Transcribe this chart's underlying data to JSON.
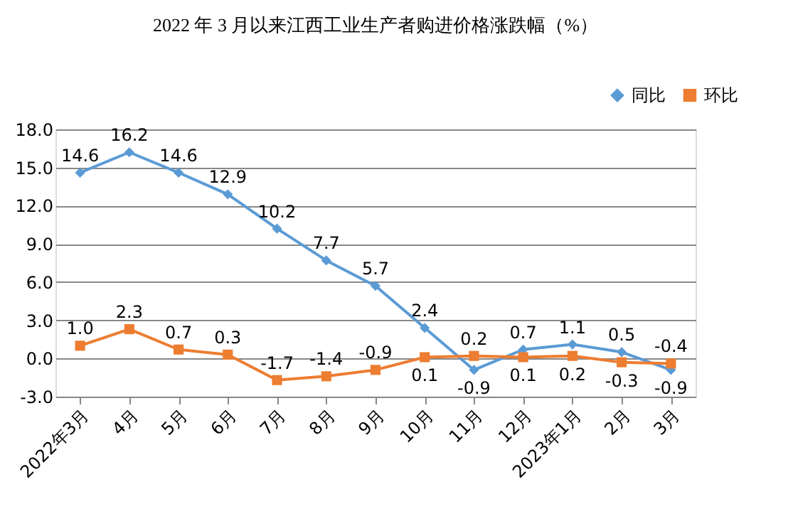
{
  "chart_data": {
    "type": "line",
    "title": "2022 年 3 月以来江西工业生产者购进价格涨跌幅（%）",
    "categories": [
      "2022年3月",
      "4月",
      "5月",
      "6月",
      "7月",
      "8月",
      "9月",
      "10月",
      "11月",
      "12月",
      "2023年1月",
      "2月",
      "3月"
    ],
    "series": [
      {
        "name": "同比",
        "color": "#5b9bd5",
        "marker": "diamond",
        "values": [
          14.6,
          16.2,
          14.6,
          12.9,
          10.2,
          7.7,
          5.7,
          2.4,
          -0.9,
          0.7,
          1.1,
          0.5,
          -0.9
        ],
        "value_labels": [
          "14.6",
          "16.2",
          "14.6",
          "12.9",
          "10.2",
          "7.7",
          "5.7",
          "2.4",
          "-0.9",
          "0.7",
          "1.1",
          "0.5",
          "-0.9"
        ]
      },
      {
        "name": "环比",
        "color": "#ed7d31",
        "marker": "square",
        "values": [
          1.0,
          2.3,
          0.7,
          0.3,
          -1.7,
          -1.4,
          -0.9,
          0.1,
          0.2,
          0.1,
          0.2,
          -0.3,
          -0.4
        ],
        "value_labels": [
          "1.0",
          "2.3",
          "0.7",
          "0.3",
          "-1.7",
          "-1.4",
          "-0.9",
          "0.1",
          "0.2",
          "0.1",
          "0.2",
          "-0.3",
          "-0.4"
        ]
      }
    ],
    "ylim": [
      -3,
      18
    ],
    "yticks": [
      {
        "value": -3,
        "label": "-3.0"
      },
      {
        "value": 0,
        "label": "0.0"
      },
      {
        "value": 3,
        "label": "3.0"
      },
      {
        "value": 6,
        "label": "6.0"
      },
      {
        "value": 9,
        "label": "9.0"
      },
      {
        "value": 12,
        "label": "12.0"
      },
      {
        "value": 15,
        "label": "15.0"
      },
      {
        "value": 18,
        "label": "18.0"
      }
    ],
    "grid": "y",
    "legend": "top right",
    "line_style": "solid"
  }
}
